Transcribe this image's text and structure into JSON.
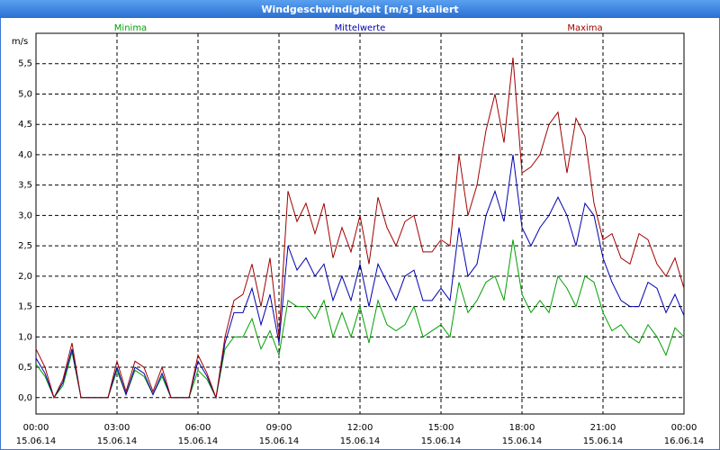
{
  "chart_data": {
    "type": "line",
    "title": "Windgeschwindigkeit [m/s] skaliert",
    "y_label": "m/s",
    "x": [
      0,
      20,
      40,
      60,
      80,
      100,
      120,
      140,
      160,
      180,
      200,
      220,
      240,
      260,
      280,
      300,
      320,
      340,
      360,
      380,
      400,
      420,
      440,
      460,
      480,
      500,
      520,
      540,
      560,
      580,
      600,
      620,
      640,
      660,
      680,
      700,
      720,
      740,
      760,
      780,
      800,
      820,
      840,
      860,
      880,
      900,
      920,
      940,
      960,
      980,
      1000,
      1020,
      1040,
      1060,
      1080,
      1100,
      1120,
      1140,
      1160,
      1180,
      1200,
      1220,
      1240,
      1260,
      1280,
      1300,
      1320,
      1340,
      1360,
      1380,
      1400,
      1420,
      1440
    ],
    "xlim": [
      0,
      1440
    ],
    "xticks": [
      {
        "value": 0,
        "label": "00:00"
      },
      {
        "value": 180,
        "label": "03:00"
      },
      {
        "value": 360,
        "label": "06:00"
      },
      {
        "value": 540,
        "label": "09:00"
      },
      {
        "value": 720,
        "label": "12:00"
      },
      {
        "value": 900,
        "label": "15:00"
      },
      {
        "value": 1080,
        "label": "18:00"
      },
      {
        "value": 1260,
        "label": "21:00"
      },
      {
        "value": 1440,
        "label": "00:00"
      }
    ],
    "xtick_dates": [
      "15.06.14",
      "15.06.14",
      "15.06.14",
      "15.06.14",
      "15.06.14",
      "15.06.14",
      "15.06.14",
      "15.06.14",
      "16.06.14"
    ],
    "ylim": [
      -0.27,
      6.0
    ],
    "yticks": [
      {
        "value": 0,
        "label": "0,0"
      },
      {
        "value": 0.5,
        "label": "0,5"
      },
      {
        "value": 1,
        "label": "1,0"
      },
      {
        "value": 1.5,
        "label": "1,5"
      },
      {
        "value": 2,
        "label": "2,0"
      },
      {
        "value": 2.5,
        "label": "2,5"
      },
      {
        "value": 3,
        "label": "3,0"
      },
      {
        "value": 3.5,
        "label": "3,5"
      },
      {
        "value": 4,
        "label": "4,0"
      },
      {
        "value": 4.5,
        "label": "4,5"
      },
      {
        "value": 5,
        "label": "5,0"
      },
      {
        "value": 5.5,
        "label": "5,5"
      }
    ],
    "grid": true,
    "series": [
      {
        "name": "Minima",
        "color": "#00a000",
        "values": [
          0.55,
          0.35,
          0,
          0.2,
          0.75,
          0,
          0,
          0,
          0,
          0.45,
          0.05,
          0.45,
          0.35,
          0.05,
          0.35,
          0,
          0,
          0,
          0.45,
          0.3,
          0,
          0.8,
          1.0,
          1.0,
          1.3,
          0.8,
          1.1,
          0.7,
          1.6,
          1.5,
          1.5,
          1.3,
          1.6,
          1.0,
          1.4,
          1.0,
          1.5,
          0.9,
          1.6,
          1.2,
          1.1,
          1.2,
          1.5,
          1.0,
          1.1,
          1.2,
          1.0,
          1.9,
          1.4,
          1.6,
          1.9,
          2.0,
          1.6,
          2.6,
          1.7,
          1.4,
          1.6,
          1.4,
          2.0,
          1.8,
          1.5,
          2.0,
          1.9,
          1.4,
          1.1,
          1.2,
          1.0,
          0.9,
          1.2,
          1.0,
          0.7,
          1.15,
          1.0
        ]
      },
      {
        "name": "Mittelwerte",
        "color": "#0000b0",
        "values": [
          0.65,
          0.4,
          0,
          0.25,
          0.8,
          0,
          0,
          0,
          0,
          0.5,
          0.05,
          0.5,
          0.4,
          0.05,
          0.4,
          0,
          0,
          0,
          0.6,
          0.35,
          0,
          0.9,
          1.4,
          1.4,
          1.8,
          1.2,
          1.7,
          0.9,
          2.5,
          2.1,
          2.3,
          2.0,
          2.2,
          1.6,
          2.0,
          1.6,
          2.2,
          1.5,
          2.2,
          1.9,
          1.6,
          2.0,
          2.1,
          1.6,
          1.6,
          1.8,
          1.6,
          2.8,
          2.0,
          2.2,
          3.0,
          3.4,
          2.9,
          4.0,
          2.8,
          2.5,
          2.8,
          3.0,
          3.3,
          3.0,
          2.5,
          3.2,
          3.0,
          2.3,
          1.9,
          1.6,
          1.5,
          1.5,
          1.9,
          1.8,
          1.4,
          1.7,
          1.35
        ]
      },
      {
        "name": "Maxima",
        "color": "#a00000",
        "values": [
          0.8,
          0.5,
          0,
          0.3,
          0.9,
          0,
          0,
          0,
          0,
          0.6,
          0.1,
          0.6,
          0.5,
          0.1,
          0.5,
          0,
          0,
          0,
          0.7,
          0.4,
          0,
          1.0,
          1.6,
          1.7,
          2.2,
          1.5,
          2.3,
          1.0,
          3.4,
          2.9,
          3.2,
          2.7,
          3.2,
          2.3,
          2.8,
          2.4,
          3.0,
          2.2,
          3.3,
          2.8,
          2.5,
          2.9,
          3.0,
          2.4,
          2.4,
          2.6,
          2.5,
          4.0,
          3.0,
          3.5,
          4.4,
          5.0,
          4.2,
          5.6,
          3.7,
          3.8,
          4.0,
          4.5,
          4.7,
          3.7,
          4.6,
          4.3,
          3.2,
          2.6,
          2.7,
          2.3,
          2.2,
          2.7,
          2.6,
          2.2,
          2.0,
          2.3,
          1.8
        ]
      }
    ]
  }
}
